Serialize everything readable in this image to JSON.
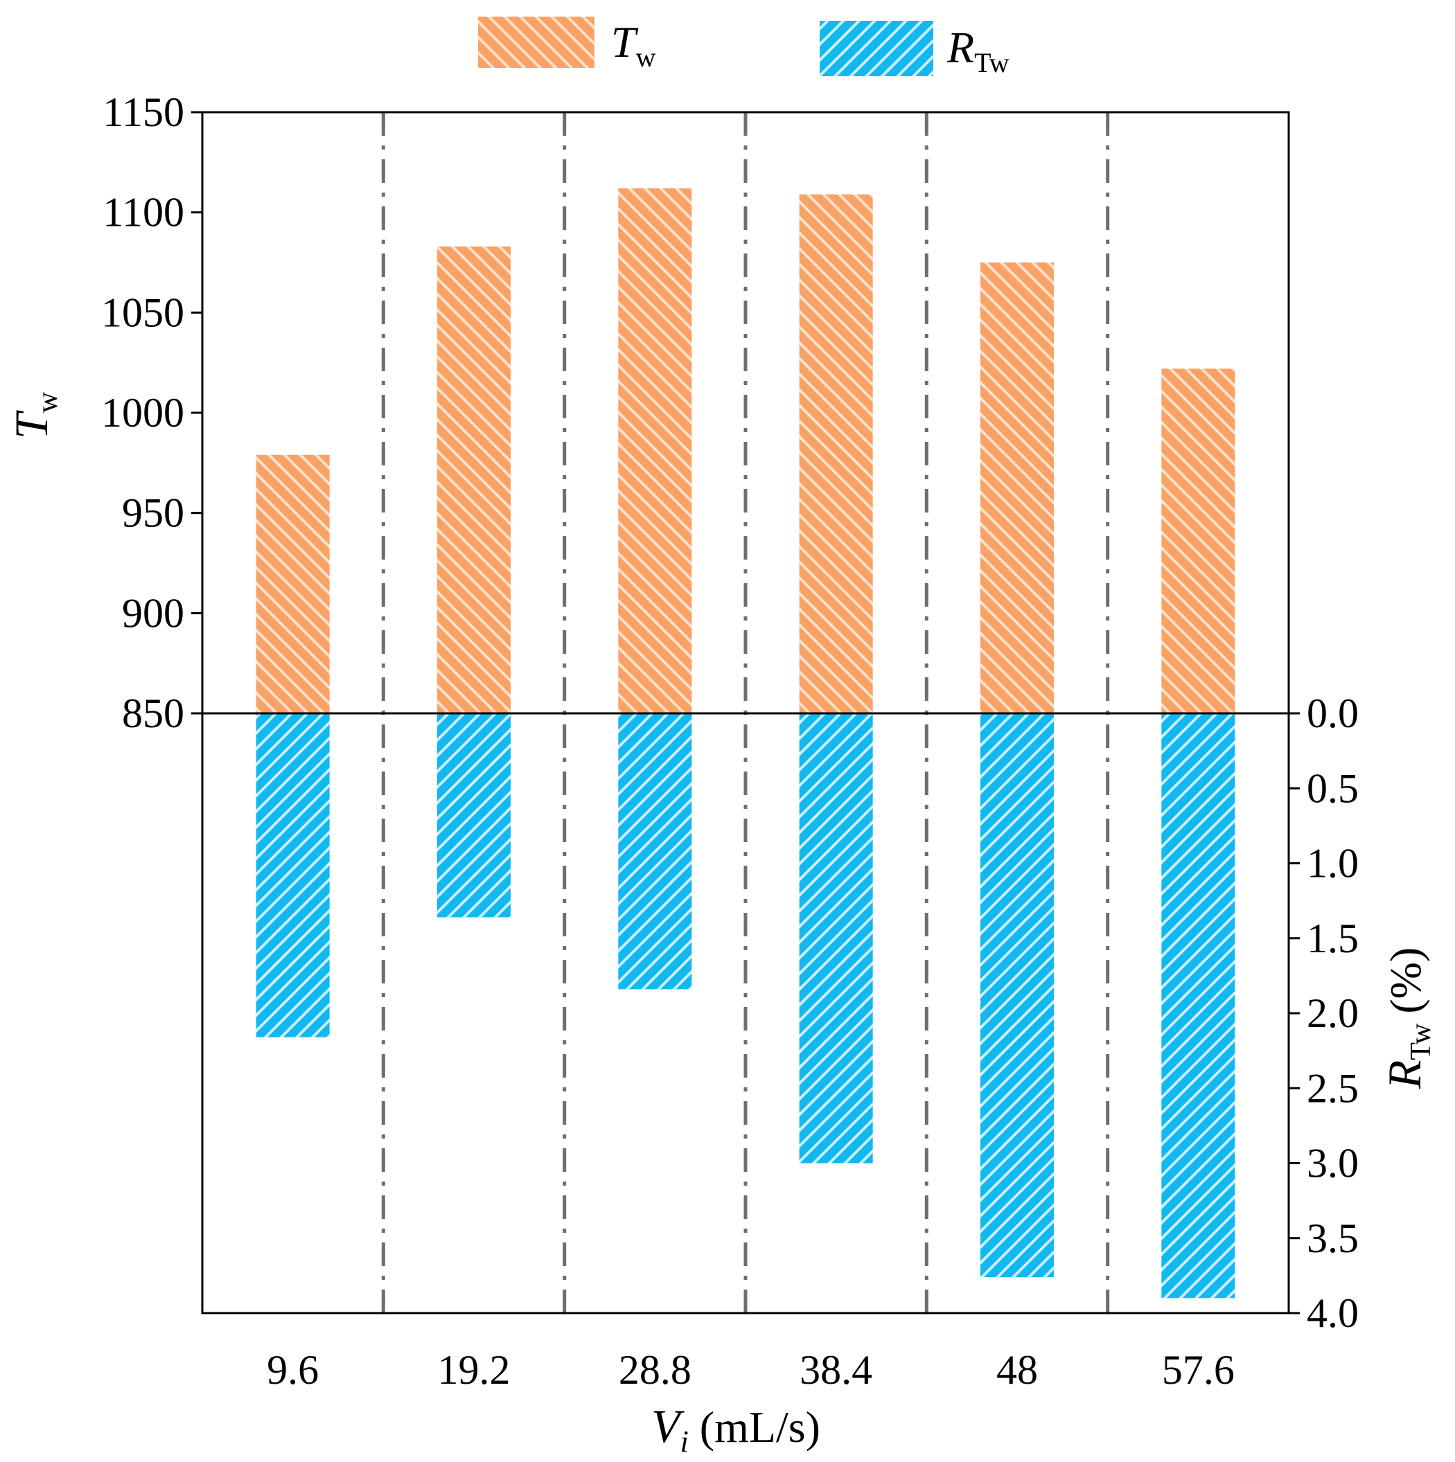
{
  "chart_data": {
    "type": "bar",
    "title": "",
    "categories": [
      "9.6",
      "19.2",
      "28.8",
      "38.4",
      "48",
      "57.6"
    ],
    "series": [
      {
        "name": "T_w",
        "axis": "left",
        "direction": "up",
        "values": [
          979,
          1083,
          1112,
          1109,
          1075,
          1022
        ],
        "color": "#F9A266",
        "pattern": "forward-diagonal-hatch"
      },
      {
        "name": "R_Tw",
        "axis": "right",
        "direction": "down",
        "values": [
          2.16,
          1.36,
          1.84,
          3.0,
          3.76,
          3.9
        ],
        "color": "#12B8F0",
        "pattern": "backward-diagonal-hatch"
      }
    ],
    "left_axis": {
      "label_main": "T",
      "label_sub": "w",
      "ylim": [
        850,
        1150
      ],
      "ticks": [
        "850",
        "900",
        "950",
        "1000",
        "1050",
        "1100",
        "1150"
      ],
      "tick_values": [
        850,
        900,
        950,
        1000,
        1050,
        1100,
        1150
      ]
    },
    "right_axis": {
      "label_main": "R",
      "label_sub": "Tw",
      "label_unit": "(%)",
      "ylim": [
        0,
        4
      ],
      "inverted": true,
      "ticks": [
        "0.0",
        "0.5",
        "1.0",
        "1.5",
        "2.0",
        "2.5",
        "3.0",
        "3.5",
        "4.0"
      ],
      "tick_values": [
        0,
        0.5,
        1,
        1.5,
        2,
        2.5,
        3,
        3.5,
        4
      ]
    },
    "x_axis": {
      "label_main": "V",
      "label_sub": "i",
      "label_unit": "(mL/s)"
    },
    "legend": {
      "position": "top-center",
      "entries": [
        {
          "main": "T",
          "sub": "w"
        },
        {
          "main": "R",
          "sub": "Tw"
        }
      ]
    },
    "separators": "dash-dot vertical lines between categories"
  }
}
